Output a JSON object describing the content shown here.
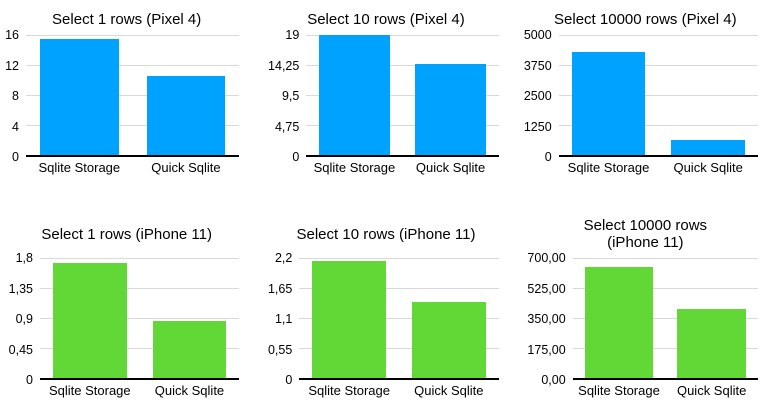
{
  "page": {
    "background_color": "#ffffff",
    "text_color": "#000000",
    "gridline_color": "#d9d9d9",
    "axis_color": "#000000"
  },
  "chart_data": [
    {
      "type": "bar",
      "title": "Select 1 rows (Pixel 4)",
      "categories": [
        "Sqlite Storage",
        "Quick Sqlite"
      ],
      "values": [
        15.5,
        10.5
      ],
      "ylim": [
        0,
        16
      ],
      "y_ticks": [
        "16",
        "12",
        "8",
        "4",
        "0"
      ],
      "bar_color": "#00A2FF",
      "grid": true,
      "legend": "none"
    },
    {
      "type": "bar",
      "title": "Select 10 rows (Pixel 4)",
      "categories": [
        "Sqlite Storage",
        "Quick Sqlite"
      ],
      "values": [
        19,
        14.4
      ],
      "ylim": [
        0,
        19
      ],
      "y_ticks": [
        "19",
        "14,25",
        "9,5",
        "4,75",
        "0"
      ],
      "bar_color": "#00A2FF",
      "grid": true,
      "legend": "none"
    },
    {
      "type": "bar",
      "title": "Select 10000 rows (Pixel 4)",
      "categories": [
        "Sqlite Storage",
        "Quick Sqlite"
      ],
      "values": [
        4300,
        630
      ],
      "ylim": [
        0,
        5000
      ],
      "y_ticks": [
        "5000",
        "3750",
        "2500",
        "1250",
        "0"
      ],
      "bar_color": "#00A2FF",
      "grid": true,
      "legend": "none"
    },
    {
      "type": "bar",
      "title": "Select 1 rows (iPhone 11)",
      "categories": [
        "Sqlite Storage",
        "Quick Sqlite"
      ],
      "values": [
        1.72,
        0.85
      ],
      "ylim": [
        0,
        1.8
      ],
      "y_ticks": [
        "1,8",
        "1,35",
        "0,9",
        "0,45",
        "0"
      ],
      "bar_color": "#61D836",
      "grid": true,
      "legend": "none"
    },
    {
      "type": "bar",
      "title": "Select 10 rows (iPhone 11)",
      "categories": [
        "Sqlite Storage",
        "Quick Sqlite"
      ],
      "values": [
        2.15,
        1.4
      ],
      "ylim": [
        0,
        2.2
      ],
      "y_ticks": [
        "2,2",
        "1,65",
        "1,1",
        "0,55",
        "0"
      ],
      "bar_color": "#61D836",
      "grid": true,
      "legend": "none"
    },
    {
      "type": "bar",
      "title": "Select 10000 rows\n(iPhone 11)",
      "categories": [
        "Sqlite Storage",
        "Quick Sqlite"
      ],
      "values": [
        650,
        405
      ],
      "ylim": [
        0,
        700
      ],
      "y_ticks": [
        "700,00",
        "525,00",
        "350,00",
        "175,00",
        "0,00"
      ],
      "bar_color": "#61D836",
      "grid": true,
      "legend": "none"
    }
  ]
}
